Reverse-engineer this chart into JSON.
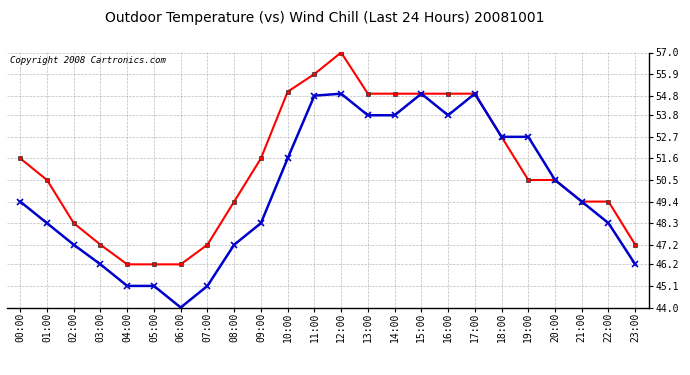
{
  "title": "Outdoor Temperature (vs) Wind Chill (Last 24 Hours) 20081001",
  "copyright": "Copyright 2008 Cartronics.com",
  "hours": [
    "00:00",
    "01:00",
    "02:00",
    "03:00",
    "04:00",
    "05:00",
    "06:00",
    "07:00",
    "08:00",
    "09:00",
    "10:00",
    "11:00",
    "12:00",
    "13:00",
    "14:00",
    "15:00",
    "16:00",
    "17:00",
    "18:00",
    "19:00",
    "20:00",
    "21:00",
    "22:00",
    "23:00"
  ],
  "red_temp": [
    51.6,
    50.5,
    48.3,
    47.2,
    46.2,
    46.2,
    46.2,
    47.2,
    49.4,
    51.6,
    55.0,
    55.9,
    57.0,
    54.9,
    54.9,
    54.9,
    54.9,
    54.9,
    52.7,
    50.5,
    50.5,
    49.4,
    49.4,
    47.2
  ],
  "blue_wc": [
    49.4,
    48.3,
    47.2,
    46.2,
    45.1,
    45.1,
    44.0,
    45.1,
    47.2,
    48.3,
    51.6,
    54.8,
    54.9,
    53.8,
    53.8,
    54.9,
    53.8,
    54.9,
    52.7,
    52.7,
    50.5,
    49.4,
    48.3,
    46.2
  ],
  "ylim": [
    44.0,
    57.0
  ],
  "yticks": [
    44.0,
    45.1,
    46.2,
    47.2,
    48.3,
    49.4,
    50.5,
    51.6,
    52.7,
    53.8,
    54.8,
    55.9,
    57.0
  ],
  "red_color": "#ff0000",
  "blue_color": "#0000cc",
  "bg_color": "#ffffff",
  "grid_color": "#aaaaaa",
  "title_fontsize": 10,
  "copyright_fontsize": 6.5,
  "tick_fontsize": 7
}
